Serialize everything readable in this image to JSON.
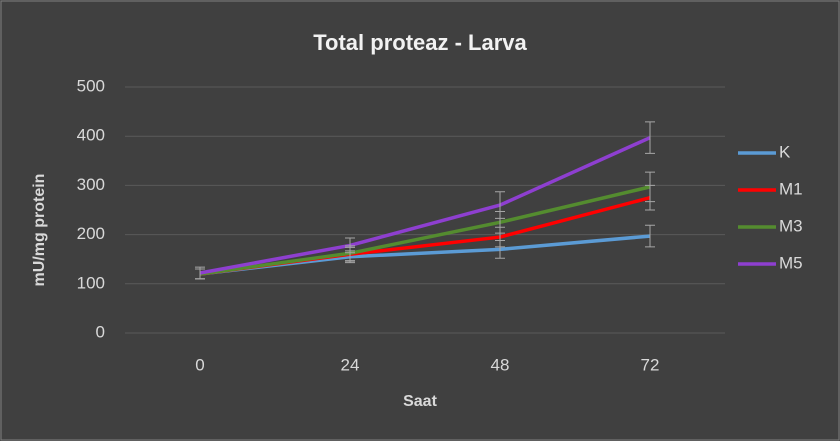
{
  "chart_data": {
    "type": "line",
    "title": "Total proteaz - Larva",
    "x_label": "Saat",
    "y_label": "mU/mg protein",
    "categories": [
      "0",
      "24",
      "48",
      "72"
    ],
    "series": [
      {
        "name": "K",
        "color": "#5b9bd5",
        "values": [
          120,
          155,
          170,
          197
        ],
        "errors": [
          10,
          12,
          18,
          22
        ]
      },
      {
        "name": "M1",
        "color": "#ff0000",
        "values": [
          120,
          160,
          195,
          275
        ],
        "errors": [
          10,
          14,
          20,
          25
        ]
      },
      {
        "name": "M3",
        "color": "#548c2f",
        "values": [
          120,
          162,
          225,
          297
        ],
        "errors": [
          10,
          15,
          22,
          30
        ]
      },
      {
        "name": "M5",
        "color": "#8e3fd0",
        "values": [
          122,
          178,
          260,
          397
        ],
        "errors": [
          12,
          15,
          27,
          32
        ]
      }
    ],
    "ylim": [
      0,
      500
    ],
    "yticks": [
      0,
      100,
      200,
      300,
      400,
      500
    ],
    "grid": true,
    "legend": "right"
  }
}
